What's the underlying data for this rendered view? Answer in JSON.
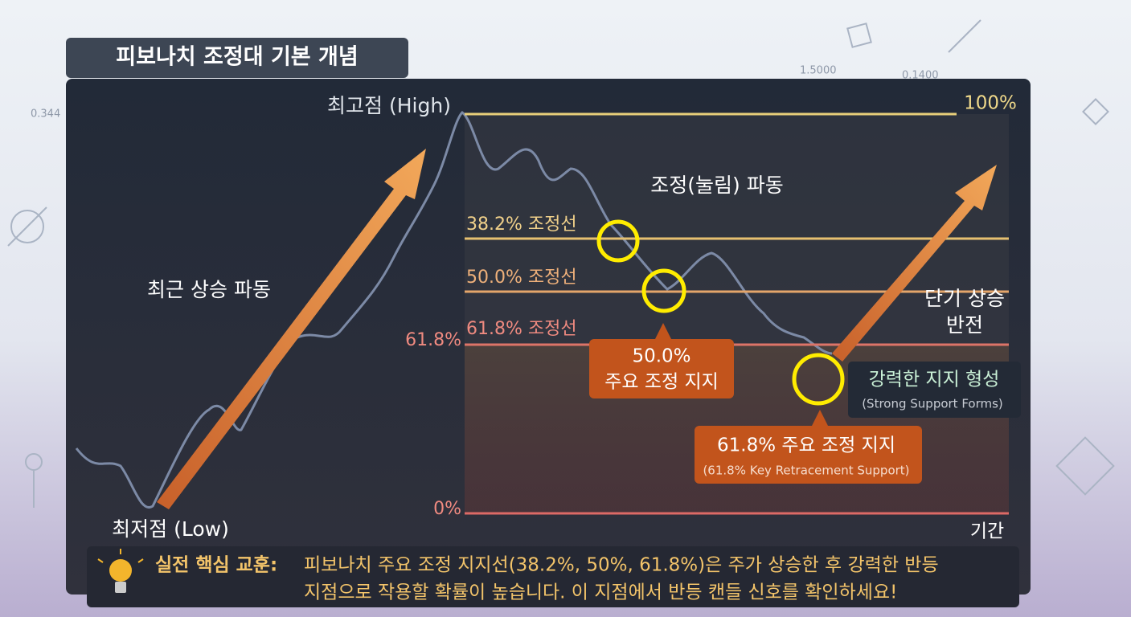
{
  "header": {
    "title": "피보나치 조정대 기본 개념"
  },
  "background_numbers": [
    "0.344",
    "1.5000",
    "0.1400"
  ],
  "levels": [
    {
      "label": "100%"
    },
    {
      "left_label": "61.8%",
      "line_label": "61.8% 조정선"
    },
    {
      "line_label": "50.0% 조정선"
    },
    {
      "line_label": "38.2% 조정선"
    },
    {
      "label": "0%"
    }
  ],
  "points": {
    "high": "최고점 (High)",
    "low": "최저점 (Low)"
  },
  "waves": {
    "up": "최근 상승 파동",
    "pullback": "조정(눌림) 파동",
    "reversal": [
      "단기 상승",
      "반전"
    ]
  },
  "callouts": {
    "support50": [
      "50.0%",
      "주요 조정 지지"
    ],
    "strong": {
      "title": "강력한 지지 형성",
      "subtitle": "(Strong Support Forms)"
    },
    "support618": {
      "title": "61.8% 주요 조정 지지",
      "subtitle": "(61.8% Key Retracement Support)"
    }
  },
  "x_axis": "기간",
  "lesson": {
    "label": "실전 핵심 교훈:",
    "lines": [
      "피보나치 주요 조정 지지선(38.2%, 50%, 61.8%)은 주가 상승한 후 강력한 반등",
      "지점으로 작용할 확률이 높습니다. 이 지점에서 반등 캔들 신호를 확인하세요!"
    ]
  }
}
